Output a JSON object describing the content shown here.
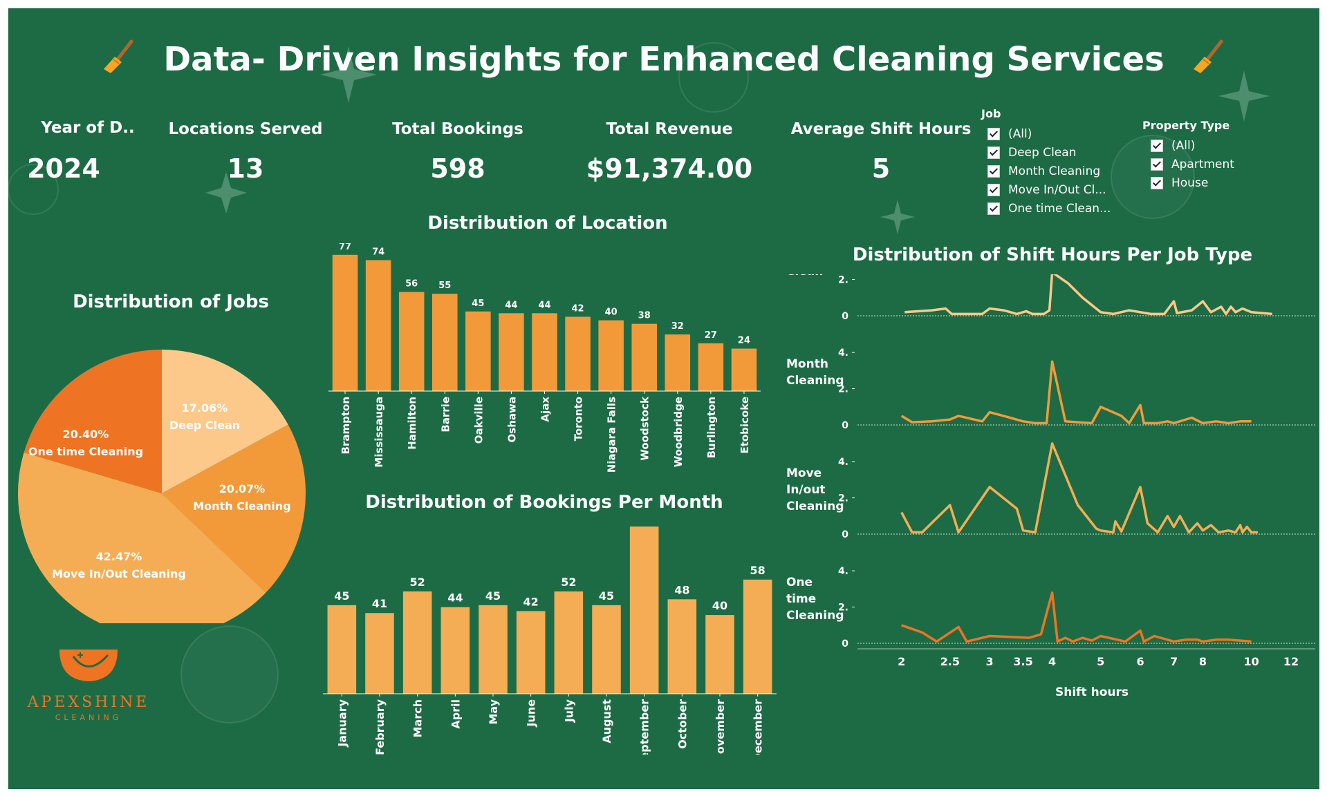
{
  "title": "Data- Driven Insights for Enhanced Cleaning Services",
  "kpis": {
    "year": {
      "label": "Year of D..",
      "value": "2024"
    },
    "locations": {
      "label": "Locations Served",
      "value": "13"
    },
    "bookings": {
      "label": "Total Bookings",
      "value": "598"
    },
    "revenue": {
      "label": "Total Revenue",
      "value": "$91,374.00"
    },
    "shift": {
      "label": "Average Shift Hours",
      "value": "5"
    }
  },
  "filters": {
    "job": {
      "title": "Job",
      "items": [
        "(All)",
        "Deep Clean",
        "Month Cleaning",
        "Move In/Out Cl...",
        "One time Clean..."
      ]
    },
    "property": {
      "title": "Property Type",
      "items": [
        "(All)",
        "Apartment",
        "House"
      ]
    }
  },
  "logo": {
    "name": "APEXSHINE",
    "sub": "CLEANING"
  },
  "colors": {
    "background": "#1d6b45",
    "orange_dark": "#ee7424",
    "orange_mid": "#f29a3a",
    "orange_light": "#f5ad55",
    "peach": "#fdc98a"
  },
  "chart_data": [
    {
      "id": "jobs",
      "type": "pie",
      "title": "Distribution of Jobs",
      "slices": [
        {
          "label": "Deep Clean",
          "value": 17.06,
          "display": "17.06%",
          "color": "#fdc98a"
        },
        {
          "label": "Month Cleaning",
          "value": 20.07,
          "display": "20.07%",
          "color": "#f29a3a"
        },
        {
          "label": "Move In/Out Cleaning",
          "value": 42.47,
          "display": "42.47%",
          "color": "#f5ad55"
        },
        {
          "label": "One time Cleaning",
          "value": 20.4,
          "display": "20.40%",
          "color": "#ee7424"
        }
      ]
    },
    {
      "id": "location",
      "type": "bar",
      "title": "Distribution of Location",
      "categories": [
        "Brampton",
        "Mississauga",
        "Hamilton",
        "Barrie",
        "Oakville",
        "Oshawa",
        "Ajax",
        "Toronto",
        "Niagara Falls",
        "Woodstock",
        "Woodbridge",
        "Burlington",
        "Etobicoke"
      ],
      "values": [
        77,
        74,
        56,
        55,
        45,
        44,
        44,
        42,
        40,
        38,
        32,
        27,
        24
      ],
      "color": "#f29a3a",
      "ylim": [
        0,
        82
      ]
    },
    {
      "id": "months",
      "type": "bar",
      "title": "Distribution of Bookings Per Month",
      "categories": [
        "January",
        "February",
        "March",
        "April",
        "May",
        "June",
        "July",
        "August",
        "September",
        "October",
        "November",
        "December"
      ],
      "values": [
        45,
        41,
        52,
        44,
        45,
        42,
        52,
        45,
        86,
        48,
        40,
        58
      ],
      "color": "#f5ad55",
      "ylim": [
        0,
        92
      ]
    },
    {
      "id": "shift",
      "type": "line",
      "title": "Distribution of Shift Hours Per Job Type",
      "xlabel": "Shift hours",
      "x_scale": "log",
      "x_ticks": [
        2,
        2.5,
        3,
        3.5,
        4,
        5,
        6,
        7,
        8,
        10,
        12
      ],
      "y_ticks": [
        0,
        2,
        4
      ],
      "y_tick_labels": [
        "0",
        "2.",
        "4."
      ],
      "ylim": [
        0,
        4.5
      ],
      "rows": [
        {
          "name": "Deep Clean",
          "label_lines": [
            "Deep",
            "Clean"
          ],
          "color": "#fdc98a",
          "points": [
            [
              2.03,
              0.2
            ],
            [
              2.3,
              0.3
            ],
            [
              2.45,
              0.4
            ],
            [
              2.52,
              0.1
            ],
            [
              2.7,
              0.1
            ],
            [
              2.9,
              0.1
            ],
            [
              3.0,
              0.4
            ],
            [
              3.2,
              0.3
            ],
            [
              3.4,
              0.1
            ],
            [
              3.55,
              0.25
            ],
            [
              3.65,
              0.1
            ],
            [
              3.85,
              0.1
            ],
            [
              3.95,
              0.3
            ],
            [
              4.0,
              2.4
            ],
            [
              4.3,
              1.8
            ],
            [
              4.6,
              1.0
            ],
            [
              5.0,
              0.2
            ],
            [
              5.3,
              0.1
            ],
            [
              5.7,
              0.3
            ],
            [
              6.0,
              0.2
            ],
            [
              6.3,
              0.1
            ],
            [
              6.7,
              0.1
            ],
            [
              7.0,
              0.8
            ],
            [
              7.1,
              0.15
            ],
            [
              7.6,
              0.3
            ],
            [
              8.0,
              0.8
            ],
            [
              8.3,
              0.2
            ],
            [
              8.7,
              0.5
            ],
            [
              8.9,
              0.1
            ],
            [
              9.1,
              0.5
            ],
            [
              9.3,
              0.2
            ],
            [
              9.6,
              0.4
            ],
            [
              10.0,
              0.2
            ],
            [
              11.0,
              0.1
            ]
          ]
        },
        {
          "name": "Month Cleaning",
          "label_lines": [
            "Month",
            "Cleaning"
          ],
          "color": "#f29a3a",
          "points": [
            [
              2.0,
              0.5
            ],
            [
              2.1,
              0.15
            ],
            [
              2.3,
              0.2
            ],
            [
              2.5,
              0.3
            ],
            [
              2.6,
              0.5
            ],
            [
              2.9,
              0.2
            ],
            [
              3.0,
              0.7
            ],
            [
              3.2,
              0.5
            ],
            [
              3.5,
              0.2
            ],
            [
              3.7,
              0.1
            ],
            [
              3.9,
              0.1
            ],
            [
              4.0,
              3.5
            ],
            [
              4.25,
              0.2
            ],
            [
              4.5,
              0.15
            ],
            [
              4.8,
              0.1
            ],
            [
              5.0,
              1.0
            ],
            [
              5.5,
              0.5
            ],
            [
              5.7,
              0.1
            ],
            [
              6.0,
              1.1
            ],
            [
              6.1,
              0.1
            ],
            [
              6.5,
              0.1
            ],
            [
              6.8,
              0.2
            ],
            [
              7.0,
              0.1
            ],
            [
              7.6,
              0.4
            ],
            [
              8.0,
              0.1
            ],
            [
              8.5,
              0.2
            ],
            [
              9.0,
              0.1
            ],
            [
              9.5,
              0.2
            ],
            [
              10.0,
              0.2
            ]
          ]
        },
        {
          "name": "Move In/Out Cleaning",
          "label_lines": [
            "Move",
            "In/out",
            "Cleaning"
          ],
          "color": "#f5ad55",
          "points": [
            [
              2.0,
              1.2
            ],
            [
              2.1,
              0.1
            ],
            [
              2.2,
              0.1
            ],
            [
              2.5,
              1.6
            ],
            [
              2.6,
              0.1
            ],
            [
              3.0,
              2.6
            ],
            [
              3.4,
              1.4
            ],
            [
              3.5,
              0.2
            ],
            [
              3.7,
              0.1
            ],
            [
              4.0,
              5.0
            ],
            [
              4.5,
              1.6
            ],
            [
              4.9,
              0.3
            ],
            [
              5.0,
              0.2
            ],
            [
              5.3,
              0.1
            ],
            [
              5.35,
              0.7
            ],
            [
              5.5,
              0.15
            ],
            [
              6.0,
              2.6
            ],
            [
              6.2,
              0.6
            ],
            [
              6.5,
              0.1
            ],
            [
              6.8,
              1.0
            ],
            [
              7.0,
              0.4
            ],
            [
              7.2,
              1.0
            ],
            [
              7.5,
              0.1
            ],
            [
              7.8,
              0.6
            ],
            [
              8.0,
              0.2
            ],
            [
              8.3,
              0.5
            ],
            [
              8.6,
              0.1
            ],
            [
              9.0,
              0.2
            ],
            [
              9.3,
              0.1
            ],
            [
              9.5,
              0.5
            ],
            [
              9.6,
              0.1
            ],
            [
              9.8,
              0.4
            ],
            [
              10.0,
              0.1
            ],
            [
              10.3,
              0.1
            ]
          ]
        },
        {
          "name": "One time Cleaning",
          "label_lines": [
            "One",
            "time",
            "Cleaning"
          ],
          "color": "#ee7424",
          "points": [
            [
              2.0,
              1.0
            ],
            [
              2.2,
              0.6
            ],
            [
              2.35,
              0.1
            ],
            [
              2.6,
              0.9
            ],
            [
              2.7,
              0.1
            ],
            [
              3.0,
              0.4
            ],
            [
              3.3,
              0.35
            ],
            [
              3.6,
              0.3
            ],
            [
              3.8,
              0.5
            ],
            [
              4.0,
              2.8
            ],
            [
              4.1,
              0.1
            ],
            [
              4.25,
              0.3
            ],
            [
              4.4,
              0.1
            ],
            [
              4.6,
              0.3
            ],
            [
              4.8,
              0.15
            ],
            [
              5.0,
              0.4
            ],
            [
              5.4,
              0.2
            ],
            [
              5.6,
              0.1
            ],
            [
              6.0,
              0.7
            ],
            [
              6.1,
              0.1
            ],
            [
              6.4,
              0.4
            ],
            [
              7.0,
              0.1
            ],
            [
              7.4,
              0.2
            ],
            [
              7.8,
              0.2
            ],
            [
              8.0,
              0.1
            ],
            [
              8.5,
              0.2
            ],
            [
              9.0,
              0.2
            ],
            [
              10.0,
              0.1
            ]
          ]
        }
      ]
    }
  ]
}
